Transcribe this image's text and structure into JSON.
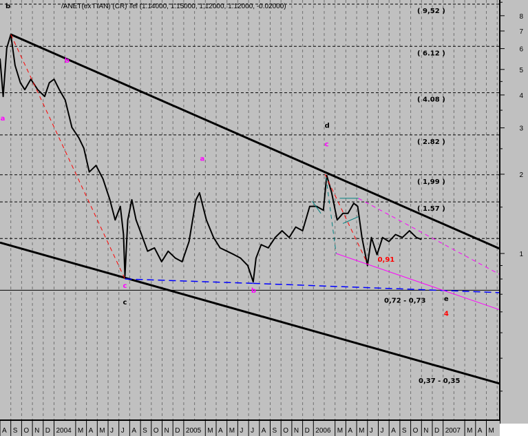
{
  "header": {
    "corner_label": "b",
    "title": "/ANET(ex ΓΙΑΝ) (CR) Tel (1.14000, 1.15000, 1,12000, 1.12000, -0.02000)"
  },
  "colors": {
    "background": "#c0c0c0",
    "price": "#000000",
    "trendline": "#000000",
    "fib_dashed": "#ff0000",
    "support_dashed": "#0000ff",
    "channel": "#ff00ff",
    "pattern": "#008080",
    "wave_label": "#ff00ff",
    "target_label": "#ff0000"
  },
  "chart_data": {
    "type": "line",
    "title": "/ANET(ex ΓΙΑΝ) (CR) Tel (1.14000, 1.15000, 1,12000, 1.12000, -0.02000)",
    "y_scale": "log",
    "ylim": [
      0.24,
      8.9
    ],
    "xlim": [
      "2003-08-01",
      "2007-05-31"
    ],
    "grid": {
      "vertical": "monthly dashed",
      "horizontal": "dashed at levels"
    },
    "y_ticks": [
      "8",
      "7",
      "6",
      "5",
      "4",
      "3",
      "2",
      "1"
    ],
    "y_tick_values": [
      8,
      7,
      6,
      5,
      4,
      3,
      2,
      1
    ],
    "x_tick_labels": [
      "A",
      "S",
      "O",
      "N",
      "D",
      "2004",
      "M",
      "A",
      "M",
      "J",
      "J",
      "A",
      "S",
      "O",
      "N",
      "D",
      "2005",
      "M",
      "A",
      "M",
      "J",
      "J",
      "A",
      "S",
      "O",
      "N",
      "D",
      "2006",
      "M",
      "A",
      "M",
      "J",
      "J",
      "A",
      "S",
      "O",
      "N",
      "D",
      "2007",
      "M",
      "A",
      "M"
    ],
    "series": [
      {
        "points": [
          [
            "2003-08-01",
            5.5
          ],
          [
            "2003-08-10",
            3.95
          ],
          [
            "2003-08-20",
            6.02
          ],
          [
            "2003-09-01",
            6.79
          ],
          [
            "2003-09-13",
            5.18
          ],
          [
            "2003-09-28",
            4.45
          ],
          [
            "2003-10-10",
            4.19
          ],
          [
            "2003-10-27",
            4.59
          ],
          [
            "2003-11-16",
            4.19
          ],
          [
            "2003-12-05",
            3.95
          ],
          [
            "2003-12-18",
            4.45
          ],
          [
            "2004-01-01",
            4.59
          ],
          [
            "2004-01-16",
            4.19
          ],
          [
            "2004-02-02",
            3.83
          ],
          [
            "2004-02-21",
            3.01
          ],
          [
            "2004-03-10",
            2.75
          ],
          [
            "2004-03-24",
            2.51
          ],
          [
            "2004-04-09",
            2.04
          ],
          [
            "2004-04-28",
            2.16
          ],
          [
            "2004-05-17",
            1.92
          ],
          [
            "2004-06-06",
            1.6
          ],
          [
            "2004-06-21",
            1.34
          ],
          [
            "2004-07-05",
            1.51
          ],
          [
            "2004-07-14",
            1.18
          ],
          [
            "2004-07-18",
            0.82
          ],
          [
            "2004-07-26",
            1.34
          ],
          [
            "2004-08-07",
            1.6
          ],
          [
            "2004-08-19",
            1.34
          ],
          [
            "2004-09-04",
            1.18
          ],
          [
            "2004-09-21",
            1.02
          ],
          [
            "2004-10-10",
            1.05
          ],
          [
            "2004-10-30",
            0.93
          ],
          [
            "2004-11-18",
            1.02
          ],
          [
            "2004-12-08",
            0.96
          ],
          [
            "2004-12-27",
            0.93
          ],
          [
            "2005-01-16",
            1.11
          ],
          [
            "2005-02-05",
            1.6
          ],
          [
            "2005-02-15",
            1.7
          ],
          [
            "2005-03-04",
            1.34
          ],
          [
            "2005-03-24",
            1.15
          ],
          [
            "2005-04-12",
            1.05
          ],
          [
            "2005-05-01",
            1.02
          ],
          [
            "2005-05-21",
            0.99
          ],
          [
            "2005-06-09",
            0.96
          ],
          [
            "2005-06-29",
            0.9
          ],
          [
            "2005-07-14",
            0.78
          ],
          [
            "2005-07-22",
            0.96
          ],
          [
            "2005-08-06",
            1.08
          ],
          [
            "2005-08-26",
            1.05
          ],
          [
            "2005-09-15",
            1.15
          ],
          [
            "2005-10-04",
            1.22
          ],
          [
            "2005-10-24",
            1.15
          ],
          [
            "2005-11-12",
            1.26
          ],
          [
            "2005-12-01",
            1.22
          ],
          [
            "2005-12-21",
            1.51
          ],
          [
            "2006-01-10",
            1.51
          ],
          [
            "2006-01-29",
            1.46
          ],
          [
            "2006-02-08",
            1.98
          ],
          [
            "2006-02-22",
            1.7
          ],
          [
            "2006-03-07",
            1.34
          ],
          [
            "2006-03-23",
            1.42
          ],
          [
            "2006-04-07",
            1.42
          ],
          [
            "2006-04-23",
            1.55
          ],
          [
            "2006-05-04",
            1.51
          ],
          [
            "2006-05-16",
            1.15
          ],
          [
            "2006-06-01",
            0.9
          ],
          [
            "2006-06-12",
            1.15
          ],
          [
            "2006-06-28",
            0.99
          ],
          [
            "2006-07-13",
            1.15
          ],
          [
            "2006-07-31",
            1.11
          ],
          [
            "2006-08-19",
            1.18
          ],
          [
            "2006-09-08",
            1.15
          ],
          [
            "2006-09-28",
            1.22
          ],
          [
            "2006-10-17",
            1.15
          ],
          [
            "2006-11-01",
            1.13
          ]
        ]
      }
    ],
    "levels": [
      {
        "label": "( 9,52 )",
        "value": 9.52
      },
      {
        "label": "( 6.12 )",
        "value": 6.12
      },
      {
        "label": "( 4.08 )",
        "value": 4.08
      },
      {
        "label": "( 2.82 )",
        "value": 2.82
      },
      {
        "label": "( 1,99 )",
        "value": 1.99
      },
      {
        "label": "( 1.57 )",
        "value": 1.57
      },
      {
        "label": "",
        "value": 1.14
      }
    ],
    "support_line": {
      "value": 0.725,
      "label": "0,72 - 0,73"
    },
    "trendlines": [
      {
        "kind": "upper",
        "color": "#000000",
        "style": "solid",
        "from": [
          "2003-09-01",
          6.79
        ],
        "to": [
          "2007-06-10",
          1.04
        ]
      },
      {
        "kind": "lower",
        "color": "#000000",
        "style": "solid",
        "from": [
          "2003-08-01",
          1.1
        ],
        "to": [
          "2007-06-10",
          0.32
        ],
        "label": "0,37 - 0,35"
      },
      {
        "kind": "fib1",
        "color": "#ff0000",
        "style": "dashed",
        "from": [
          "2003-09-01",
          6.79
        ],
        "to": [
          "2004-07-18",
          0.8
        ]
      },
      {
        "kind": "fib2",
        "color": "#ff0000",
        "style": "dashed",
        "from": [
          "2006-02-03",
          2.0
        ],
        "to": [
          "2006-06-02",
          0.91
        ]
      },
      {
        "kind": "support",
        "color": "#0000ff",
        "style": "dashed",
        "from": [
          "2004-07-18",
          0.8
        ],
        "to": [
          "2005-07-14",
          0.77
        ]
      },
      {
        "kind": "support2",
        "color": "#0000ff",
        "style": "dashed",
        "from": [
          "2005-07-14",
          0.77
        ],
        "to": [
          "2007-06-10",
          0.71
        ]
      },
      {
        "kind": "channel-low",
        "color": "#ff00ff",
        "style": "solid",
        "from": [
          "2006-03-04",
          1.0
        ],
        "to": [
          "2007-06-10",
          0.61
        ]
      },
      {
        "kind": "channel-high",
        "color": "#ff00ff",
        "style": "dashed",
        "from": [
          "2006-05-06",
          1.62
        ],
        "to": [
          "2007-06-10",
          0.83
        ]
      },
      {
        "kind": "pattern1",
        "color": "#008080",
        "style": "dashed",
        "from": [
          "2006-02-06",
          1.95
        ],
        "to": [
          "2006-03-04",
          1.0
        ]
      },
      {
        "kind": "pattern2",
        "color": "#008080",
        "style": "solid",
        "from": [
          "2006-03-14",
          1.62
        ],
        "to": [
          "2006-05-06",
          1.62
        ]
      },
      {
        "kind": "pattern3",
        "color": "#008080",
        "style": "solid",
        "from": [
          "2006-03-23",
          1.3
        ],
        "to": [
          "2006-05-06",
          1.38
        ]
      },
      {
        "kind": "pattern4",
        "color": "#008080",
        "style": "solid",
        "from": [
          "2005-12-28",
          1.58
        ],
        "to": [
          "2006-01-22",
          1.42
        ]
      }
    ],
    "annotations": [
      {
        "text": "a",
        "color": "#ff00ff",
        "at": [
          "2003-08-08",
          3.2
        ]
      },
      {
        "text": "b",
        "color": "#ff00ff",
        "at": [
          "2004-02-06",
          5.3
        ]
      },
      {
        "text": "c",
        "color": "#ff00ff",
        "at": [
          "2004-07-18",
          0.74
        ]
      },
      {
        "text": "c",
        "color": "#000000",
        "at": [
          "2004-07-18",
          0.64
        ]
      },
      {
        "text": "a",
        "color": "#ff00ff",
        "at": [
          "2005-02-22",
          2.25
        ]
      },
      {
        "text": "b",
        "color": "#ff00ff",
        "at": [
          "2005-07-14",
          0.71
        ]
      },
      {
        "text": "c",
        "color": "#ff00ff",
        "at": [
          "2006-02-08",
          2.55
        ]
      },
      {
        "text": "d",
        "color": "#000000",
        "at": [
          "2006-02-08",
          3.0
        ]
      },
      {
        "text": "0,91",
        "color": "#ff0000",
        "at": [
          "2006-07-05",
          0.93
        ]
      },
      {
        "text": "e",
        "color": "#000000",
        "at": [
          "2007-01-09",
          0.66
        ]
      },
      {
        "text": "4",
        "color": "#ff0000",
        "at": [
          "2007-01-09",
          0.58
        ]
      }
    ]
  }
}
